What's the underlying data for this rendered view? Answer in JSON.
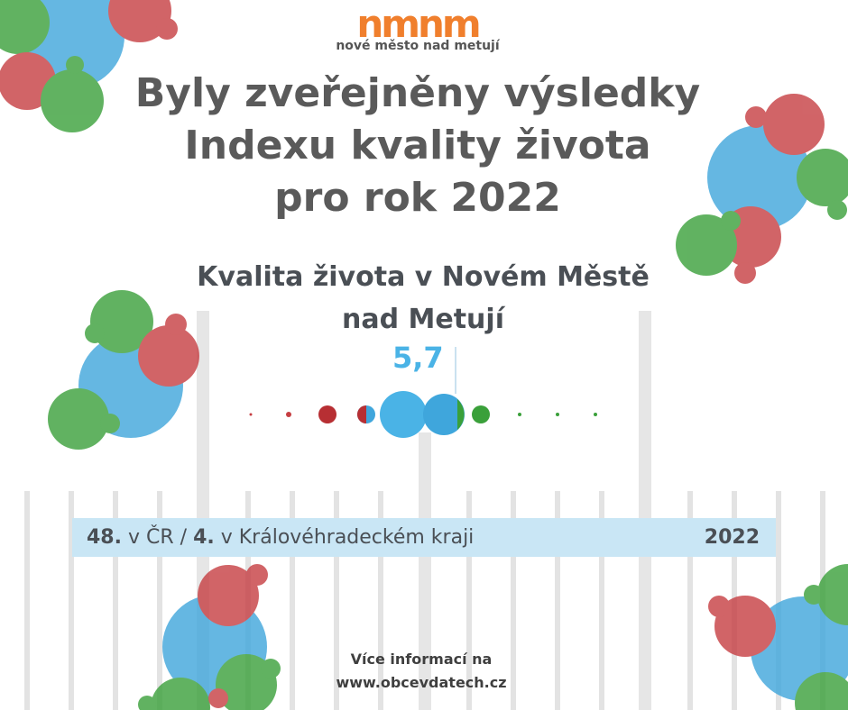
{
  "logo": {
    "mark": "nmnm",
    "text": "nové město nad metují"
  },
  "title": {
    "lines": [
      "Byly zveřejněny výsledky",
      "Indexu kvality života",
      "pro rok 2022"
    ]
  },
  "subtitle": {
    "lines": [
      "Kvalita života v Novém Městě",
      "nad Metují"
    ]
  },
  "score": "5,7",
  "rank": {
    "national": "48.",
    "national_label": "v ČR /",
    "regional": "4.",
    "regional_label": "v Královéhradeckém kraji",
    "year": "2022"
  },
  "footer": {
    "line1": "Více informací na",
    "url": "www.obcevdatech.cz"
  }
}
